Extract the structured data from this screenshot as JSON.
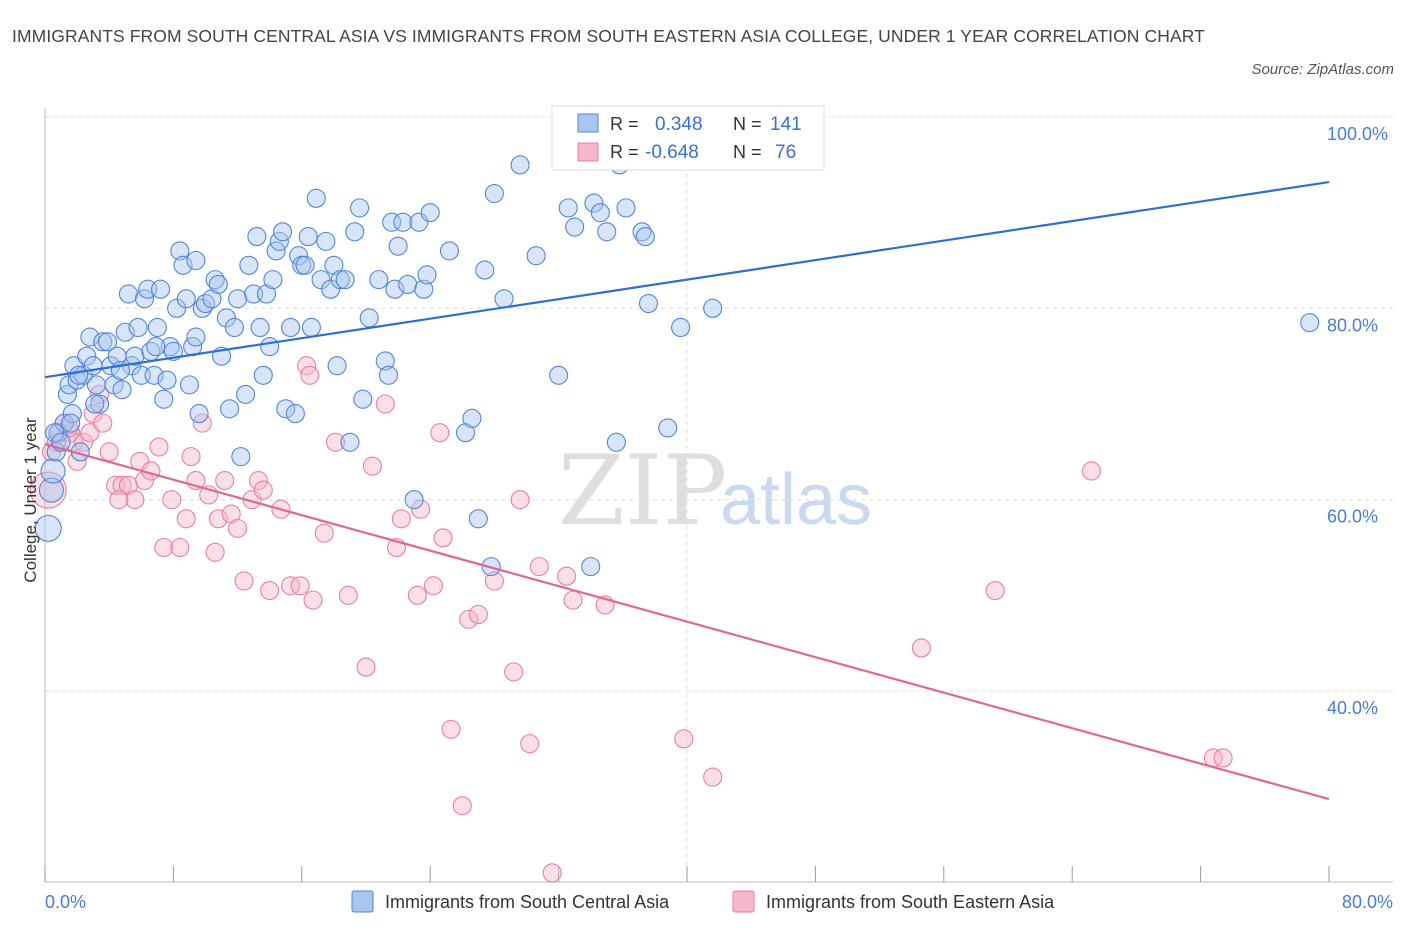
{
  "header": {
    "title": "IMMIGRANTS FROM SOUTH CENTRAL ASIA VS IMMIGRANTS FROM SOUTH EASTERN ASIA COLLEGE, UNDER 1 YEAR CORRELATION CHART",
    "source": "Source: ZipAtlas.com"
  },
  "watermark": {
    "zip": "ZIP",
    "atlas": "atlas"
  },
  "stats": {
    "r_label": "R =",
    "n_label": "N =",
    "rows": [
      {
        "r": "0.348",
        "n": "141"
      },
      {
        "r": "-0.648",
        "n": "76"
      }
    ]
  },
  "chart_data": {
    "type": "scatter",
    "title": "IMMIGRANTS FROM SOUTH CENTRAL ASIA VS IMMIGRANTS FROM SOUTH EASTERN ASIA COLLEGE, UNDER 1 YEAR CORRELATION CHART",
    "xlabel": "",
    "ylabel": "College, Under 1 year",
    "xlim": [
      0,
      80
    ],
    "ylim": [
      20,
      100
    ],
    "x_tick_labels": [
      "0.0%",
      "80.0%"
    ],
    "y_tick_labels": [
      "100.0%",
      "80.0%",
      "60.0%",
      "40.0%"
    ],
    "y_ticks": [
      100,
      80,
      60,
      40
    ],
    "grid": true,
    "legend_position": "bottom",
    "colors": {
      "blue_fill": "#a9c6ef",
      "blue_stroke": "#4f86d9",
      "blue_line": "#2f6fd0",
      "pink_fill": "#f5b8cb",
      "pink_stroke": "#e87fa2",
      "pink_line": "#e06693",
      "grid": "#dcdcdc",
      "axis_text": "#4a7cd2"
    },
    "series": [
      {
        "name": "Immigrants from South Central Asia",
        "trend": {
          "x": [
            0,
            80
          ],
          "y": [
            72.8,
            93.2
          ]
        },
        "points": [
          [
            0.2,
            57
          ],
          [
            0.4,
            61
          ],
          [
            0.5,
            63
          ],
          [
            0.7,
            65
          ],
          [
            0.8,
            67
          ],
          [
            1.2,
            68
          ],
          [
            1.4,
            71
          ],
          [
            1.5,
            72
          ],
          [
            1.7,
            69
          ],
          [
            1.8,
            74
          ],
          [
            2.0,
            72.5
          ],
          [
            2.2,
            65
          ],
          [
            2.4,
            73
          ],
          [
            2.6,
            75
          ],
          [
            2.8,
            77
          ],
          [
            3.0,
            74
          ],
          [
            3.2,
            72
          ],
          [
            3.4,
            70
          ],
          [
            3.6,
            76.5
          ],
          [
            3.9,
            76.5
          ],
          [
            4.1,
            74
          ],
          [
            4.3,
            72
          ],
          [
            4.5,
            75
          ],
          [
            4.8,
            71.5
          ],
          [
            5.0,
            77.5
          ],
          [
            5.2,
            81.5
          ],
          [
            5.4,
            74
          ],
          [
            5.6,
            75
          ],
          [
            5.8,
            78
          ],
          [
            6.0,
            73
          ],
          [
            6.2,
            81
          ],
          [
            6.4,
            82
          ],
          [
            6.6,
            75.5
          ],
          [
            6.8,
            73
          ],
          [
            7.0,
            78
          ],
          [
            7.2,
            82
          ],
          [
            7.4,
            70.5
          ],
          [
            7.6,
            72.5
          ],
          [
            7.8,
            76
          ],
          [
            8.0,
            75.5
          ],
          [
            8.2,
            80
          ],
          [
            8.4,
            86
          ],
          [
            8.6,
            84.5
          ],
          [
            8.8,
            81
          ],
          [
            9.0,
            72
          ],
          [
            9.2,
            76
          ],
          [
            9.4,
            77
          ],
          [
            9.6,
            69
          ],
          [
            9.8,
            80
          ],
          [
            10.0,
            80.5
          ],
          [
            10.4,
            81
          ],
          [
            10.6,
            83
          ],
          [
            10.8,
            82.5
          ],
          [
            11.0,
            75
          ],
          [
            11.3,
            79
          ],
          [
            11.5,
            69.5
          ],
          [
            11.8,
            78
          ],
          [
            12.0,
            81
          ],
          [
            12.2,
            64.5
          ],
          [
            12.5,
            71
          ],
          [
            12.7,
            84.5
          ],
          [
            13.0,
            81.5
          ],
          [
            13.4,
            78
          ],
          [
            13.6,
            73
          ],
          [
            13.8,
            81.5
          ],
          [
            14.0,
            76
          ],
          [
            14.2,
            83
          ],
          [
            14.4,
            86
          ],
          [
            14.6,
            87
          ],
          [
            14.8,
            88
          ],
          [
            15.0,
            69.5
          ],
          [
            15.3,
            78
          ],
          [
            15.6,
            69
          ],
          [
            15.8,
            85.5
          ],
          [
            16.0,
            84.5
          ],
          [
            16.2,
            84.5
          ],
          [
            16.4,
            87.5
          ],
          [
            16.6,
            78
          ],
          [
            16.9,
            91.5
          ],
          [
            17.2,
            83
          ],
          [
            17.5,
            87
          ],
          [
            17.8,
            82
          ],
          [
            18.0,
            84.5
          ],
          [
            18.2,
            74
          ],
          [
            18.4,
            83
          ],
          [
            18.7,
            83
          ],
          [
            19.0,
            66
          ],
          [
            19.3,
            88
          ],
          [
            19.6,
            90.5
          ],
          [
            19.8,
            70.5
          ],
          [
            20.2,
            79
          ],
          [
            20.8,
            83
          ],
          [
            21.2,
            74.5
          ],
          [
            21.4,
            73
          ],
          [
            21.6,
            89
          ],
          [
            21.8,
            82
          ],
          [
            22.0,
            86.5
          ],
          [
            22.3,
            89
          ],
          [
            22.6,
            82.5
          ],
          [
            23.0,
            60
          ],
          [
            23.3,
            89
          ],
          [
            23.6,
            82
          ],
          [
            23.8,
            83.5
          ],
          [
            24.0,
            90
          ],
          [
            25.2,
            86
          ],
          [
            26.2,
            67
          ],
          [
            26.6,
            68.5
          ],
          [
            27.0,
            58
          ],
          [
            27.4,
            84
          ],
          [
            27.8,
            53
          ],
          [
            28.0,
            92
          ],
          [
            28.6,
            81
          ],
          [
            29.6,
            95
          ],
          [
            30.6,
            85.5
          ],
          [
            32.0,
            73
          ],
          [
            32.6,
            90.5
          ],
          [
            33.0,
            88.5
          ],
          [
            34.0,
            53
          ],
          [
            34.2,
            91
          ],
          [
            34.6,
            90
          ],
          [
            35.0,
            88
          ],
          [
            35.6,
            66
          ],
          [
            35.8,
            95
          ],
          [
            36.2,
            90.5
          ],
          [
            37.2,
            88
          ],
          [
            37.4,
            87.5
          ],
          [
            37.6,
            80.5
          ],
          [
            38.8,
            67.5
          ],
          [
            39.6,
            78
          ],
          [
            41.6,
            80
          ],
          [
            78.8,
            78.5
          ],
          [
            0.6,
            67
          ],
          [
            1.0,
            66
          ],
          [
            1.6,
            68
          ],
          [
            2.1,
            73
          ],
          [
            3.1,
            70
          ],
          [
            4.7,
            73.5
          ],
          [
            6.9,
            76
          ],
          [
            9.4,
            85
          ],
          [
            13.2,
            87.5
          ]
        ]
      },
      {
        "name": "Immigrants from South Eastern Asia",
        "trend": {
          "x": [
            0,
            80
          ],
          "y": [
            65.8,
            28.7
          ]
        },
        "points": [
          [
            0.2,
            61
          ],
          [
            0.4,
            65
          ],
          [
            0.7,
            66
          ],
          [
            0.9,
            67
          ],
          [
            1.2,
            68
          ],
          [
            1.6,
            67
          ],
          [
            1.8,
            66
          ],
          [
            2.0,
            64
          ],
          [
            2.4,
            66
          ],
          [
            2.8,
            67
          ],
          [
            3.0,
            69
          ],
          [
            3.4,
            71
          ],
          [
            3.6,
            68
          ],
          [
            4.0,
            65
          ],
          [
            4.4,
            61.5
          ],
          [
            4.8,
            61.5
          ],
          [
            5.2,
            61.5
          ],
          [
            5.6,
            60
          ],
          [
            5.9,
            64
          ],
          [
            6.2,
            62
          ],
          [
            6.6,
            63
          ],
          [
            7.1,
            65.5
          ],
          [
            7.4,
            55
          ],
          [
            7.9,
            60
          ],
          [
            8.4,
            55
          ],
          [
            8.8,
            58
          ],
          [
            9.1,
            64.5
          ],
          [
            9.4,
            62
          ],
          [
            9.8,
            68
          ],
          [
            10.2,
            60.5
          ],
          [
            10.6,
            54.5
          ],
          [
            10.8,
            58
          ],
          [
            11.2,
            62
          ],
          [
            11.6,
            58.5
          ],
          [
            12.0,
            57
          ],
          [
            12.4,
            51.5
          ],
          [
            12.9,
            60
          ],
          [
            13.3,
            62
          ],
          [
            13.6,
            61
          ],
          [
            14.0,
            50.5
          ],
          [
            14.7,
            59
          ],
          [
            15.3,
            51
          ],
          [
            15.9,
            51
          ],
          [
            16.3,
            74
          ],
          [
            16.5,
            73
          ],
          [
            16.7,
            49.5
          ],
          [
            17.4,
            56.5
          ],
          [
            18.1,
            66
          ],
          [
            18.9,
            50
          ],
          [
            20.0,
            42.5
          ],
          [
            20.4,
            63.5
          ],
          [
            21.2,
            70
          ],
          [
            21.9,
            55
          ],
          [
            22.2,
            58
          ],
          [
            23.2,
            50
          ],
          [
            23.4,
            59
          ],
          [
            24.2,
            51
          ],
          [
            24.6,
            67
          ],
          [
            24.8,
            56
          ],
          [
            25.3,
            36
          ],
          [
            26.0,
            28
          ],
          [
            26.4,
            47.5
          ],
          [
            27.0,
            48
          ],
          [
            28.0,
            51.5
          ],
          [
            29.2,
            42
          ],
          [
            29.6,
            60
          ],
          [
            30.2,
            34.5
          ],
          [
            30.8,
            53
          ],
          [
            31.6,
            21
          ],
          [
            32.5,
            52
          ],
          [
            32.9,
            49.5
          ],
          [
            34.9,
            49
          ],
          [
            39.8,
            35
          ],
          [
            41.6,
            31
          ],
          [
            54.6,
            44.5
          ],
          [
            59.2,
            50.5
          ]
        ]
      }
    ],
    "extra_pink_points": [
      [
        1.5,
        67.5
      ],
      [
        4.6,
        60
      ],
      [
        65.2,
        63
      ],
      [
        72.8,
        33
      ],
      [
        73.4,
        33
      ]
    ]
  },
  "legend": {
    "items": [
      {
        "label": "Immigrants from South Central Asia"
      },
      {
        "label": "Immigrants from South Eastern Asia"
      }
    ]
  }
}
